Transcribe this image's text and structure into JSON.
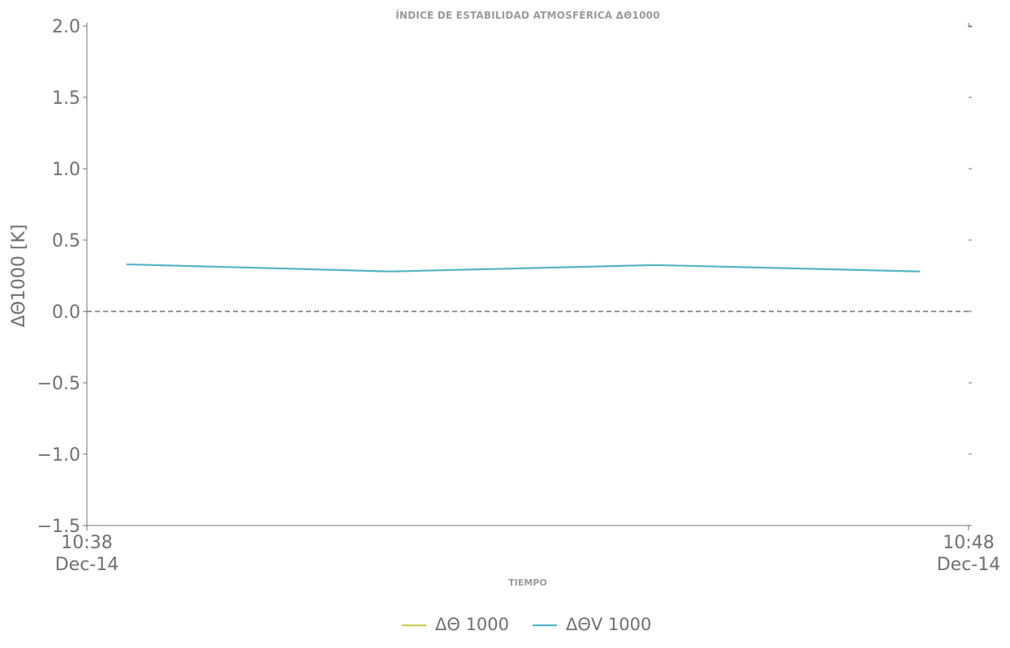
{
  "chart_data": {
    "type": "line",
    "title": "ÍNDICE DE ESTABILIDAD ATMOSFÉRICA ΔΘ1000",
    "xlabel": "TIEMPO",
    "ylabel": "ΔΘ1000 [K]",
    "ylim": [
      -1.5,
      2.0
    ],
    "yticks": [
      -1.5,
      -1.0,
      -0.5,
      0.0,
      0.5,
      1.0,
      1.5,
      2.0
    ],
    "ytick_labels": [
      "−1.5",
      "−1.0",
      "−0.5",
      "0.0",
      "0.5",
      "1.0",
      "1.5",
      "2.0"
    ],
    "xlim": [
      "10:38",
      "10:48"
    ],
    "xticks": [
      {
        "time": "10:38",
        "date": "Dec-14"
      },
      {
        "time": "10:48",
        "date": "Dec-14"
      }
    ],
    "reference_line": {
      "y": 0.0,
      "style": "dashed",
      "color": "#707070"
    },
    "series": [
      {
        "name": "ΔΘ 1000",
        "color": "#c9cc5a",
        "x": [],
        "values": []
      },
      {
        "name": "ΔΘV 1000",
        "color": "#56b4c4",
        "x": [
          "10:38:27",
          "10:41:27",
          "10:44:27",
          "10:47:27"
        ],
        "values": [
          0.33,
          0.28,
          0.325,
          0.28
        ]
      }
    ],
    "grid": false,
    "legend_position": "bottom-center"
  }
}
